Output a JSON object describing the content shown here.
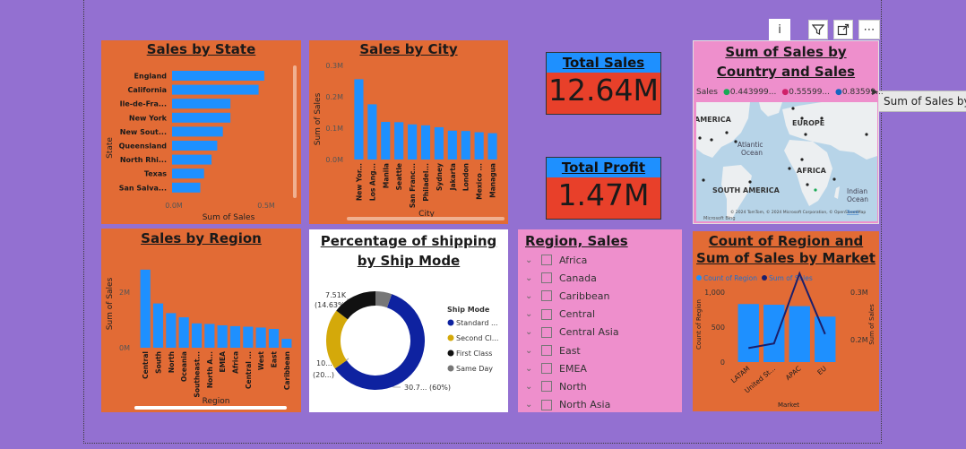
{
  "toolbar": {
    "info_icon": "info-icon",
    "filter_icon": "filter-icon",
    "focus_icon": "focus-mode-icon",
    "more_icon": "more-options-icon",
    "tooltip": "Sum of Sales by Country and Sales"
  },
  "sales_by_state": {
    "title": "Sales by State",
    "ylabel": "State",
    "xlabel": "Sum of Sales",
    "xticks": [
      "0.0M",
      "0.5M"
    ],
    "chart_data": {
      "type": "bar",
      "orientation": "horizontal",
      "categories": [
        "England",
        "California",
        "Ile-de-Fra...",
        "New York",
        "New Sout...",
        "Queensland",
        "North Rhi...",
        "Texas",
        "San Salva..."
      ],
      "values": [
        0.49,
        0.46,
        0.31,
        0.31,
        0.27,
        0.24,
        0.21,
        0.17,
        0.15
      ],
      "xlim": [
        0,
        0.5
      ],
      "unit": "M"
    }
  },
  "sales_by_city": {
    "title": "Sales by City",
    "ylabel": "Sum of Sales",
    "xlabel": "City",
    "yticks": [
      "0.3M",
      "0.2M",
      "0.1M",
      "0.0M"
    ],
    "chart_data": {
      "type": "bar",
      "categories": [
        "New Yor...",
        "Los Ang...",
        "Manila",
        "Seattle",
        "San Franc...",
        "Philadel...",
        "Sydney",
        "Jakarta",
        "London",
        "Mexico ...",
        "Managua"
      ],
      "values": [
        0.256,
        0.176,
        0.12,
        0.119,
        0.112,
        0.109,
        0.103,
        0.092,
        0.091,
        0.087,
        0.084
      ],
      "ylim": [
        0,
        0.3
      ],
      "unit": "M"
    }
  },
  "total_sales": {
    "title": "Total Sales",
    "value": "12.64M"
  },
  "total_profit": {
    "title": "Total Profit",
    "value": "1.47M"
  },
  "map": {
    "title": "Sum of Sales by Country and Sales",
    "legend_label": "Sales",
    "legend": [
      {
        "label": "0.443999...",
        "color": "#1aaa55"
      },
      {
        "label": "0.55599...",
        "color": "#d0206a"
      },
      {
        "label": "0.83599...",
        "color": "#1565c0"
      }
    ],
    "labels": {
      "america": "AMERICA",
      "europe": "EUROPE",
      "atlantic": "Atlantic\nOcean",
      "africa": "AFRICA",
      "south_america": "SOUTH AMERICA",
      "indian": "Indian\nOcean"
    },
    "credit": "© 2024 TomTom, © 2024 Microsoft Corporation, © OpenStreetMap",
    "terms": "Terms",
    "bing": "Microsoft Bing"
  },
  "sales_by_region": {
    "title": "Sales by Region",
    "ylabel": "Sum of Sales",
    "xlabel": "Region",
    "yticks": [
      "2M",
      "0M"
    ],
    "chart_data": {
      "type": "bar",
      "categories": [
        "Central",
        "South",
        "North",
        "Oceania",
        "Southeast...",
        "North A...",
        "EMEA",
        "Africa",
        "Central ...",
        "West",
        "East",
        "Caribbean"
      ],
      "values": [
        2.82,
        1.6,
        1.25,
        1.1,
        0.88,
        0.86,
        0.81,
        0.78,
        0.76,
        0.73,
        0.68,
        0.32
      ],
      "ylim": [
        0,
        3.4
      ],
      "unit": "M"
    }
  },
  "shipping": {
    "title": "Percentage of shipping by Ship Mode",
    "legend_title": "Ship Mode",
    "labels": {
      "top": "7.51K",
      "top_pct": "(14.63%)",
      "left": "10...",
      "left_pct": "(20...)",
      "bottom": "30.7... (60%)"
    },
    "chart_data": {
      "type": "pie",
      "donut": true,
      "categories": [
        "Standard ...",
        "Second Cl...",
        "First Class",
        "Same Day"
      ],
      "values": [
        60,
        20,
        14.63,
        5.37
      ],
      "colors": [
        "#0e22a0",
        "#d4a90a",
        "#111111",
        "#777777"
      ]
    }
  },
  "region_slicer": {
    "title": "Region, Sales",
    "items": [
      "Africa",
      "Canada",
      "Caribbean",
      "Central",
      "Central Asia",
      "East",
      "EMEA",
      "North",
      "North Asia"
    ]
  },
  "market": {
    "title": "Count of Region and Sum of Sales by Market",
    "legend": [
      {
        "label": "Count of Region",
        "color": "#1e90ff"
      },
      {
        "label": "Sum of Sales",
        "color": "#1b1f6b"
      }
    ],
    "y_left_label": "Count of Region",
    "y_right_label": "Sum of Sales",
    "xlabel": "Market",
    "yticks_left": [
      "1,000",
      "500",
      "0"
    ],
    "yticks_right": [
      "0.3M",
      "0.2M"
    ],
    "chart_data": {
      "type": "bar",
      "categories": [
        "LATAM",
        "United St...",
        "APAC",
        "EU"
      ],
      "series": [
        {
          "name": "Count of Region",
          "type": "bar",
          "values": [
            830,
            820,
            800,
            650
          ]
        },
        {
          "name": "Sum of Sales",
          "type": "line",
          "values": [
            0.18,
            0.19,
            0.34,
            0.21
          ]
        }
      ],
      "ylim_left": [
        0,
        1000
      ],
      "ylim_right": [
        0.15,
        0.3
      ]
    }
  }
}
